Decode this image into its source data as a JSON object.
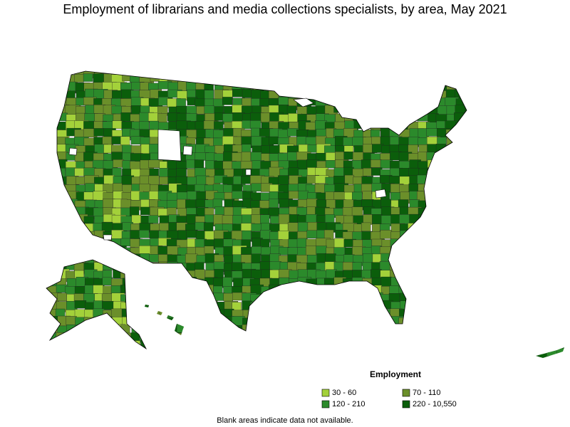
{
  "title": "Employment of librarians and media collections specialists, by area, May 2021",
  "legend": {
    "title": "Employment",
    "items": [
      {
        "label": "30 - 60",
        "color": "#a3d13a"
      },
      {
        "label": "70 - 110",
        "color": "#6b8f2a"
      },
      {
        "label": "120 - 210",
        "color": "#2b8a2b"
      },
      {
        "label": "220 - 10,550",
        "color": "#0b5e0b"
      }
    ]
  },
  "note": "Blank areas indicate data not available."
}
